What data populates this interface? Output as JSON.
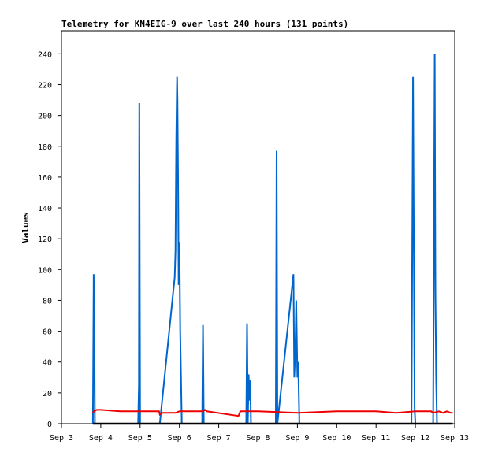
{
  "chart_data": {
    "type": "line",
    "title": "Telemetry for KN4EIG-9 over last 240 hours (131 points)",
    "xlabel": "",
    "ylabel": "Values",
    "ylim": [
      0,
      255
    ],
    "xlim": [
      0,
      10
    ],
    "x_ticks": [
      "Sep 3",
      "Sep 4",
      "Sep 5",
      "Sep 6",
      "Sep 7",
      "Sep 8",
      "Sep 9",
      "Sep 10",
      "Sep 11",
      "Sep 12",
      "Sep 13"
    ],
    "y_ticks": [
      0,
      20,
      40,
      60,
      80,
      100,
      120,
      140,
      160,
      180,
      200,
      220,
      240
    ],
    "x_unit": "days since Sep 3",
    "grid": false,
    "legend": "none",
    "series": [
      {
        "color": "#0066cc",
        "x": [
          0.8,
          0.82,
          0.84,
          0.85,
          0.86,
          0.88,
          1.95,
          1.97,
          1.98,
          2.0,
          2.02,
          2.5,
          2.88,
          2.9,
          2.92,
          2.94,
          2.95,
          2.97,
          2.98,
          3.0,
          3.02,
          3.04,
          3.06,
          3.58,
          3.6,
          3.62,
          4.7,
          4.72,
          4.74,
          4.76,
          4.78,
          4.8,
          4.82,
          5.45,
          5.47,
          5.49,
          5.9,
          5.92,
          5.95,
          5.97,
          6.0,
          6.02,
          6.05,
          8.9,
          8.92,
          8.94,
          8.96,
          8.98,
          9.0,
          9.45,
          9.47,
          9.49,
          9.51,
          9.53,
          9.55
        ],
        "y": [
          0,
          97,
          48,
          0,
          0,
          0,
          0,
          25,
          208,
          0,
          0,
          0,
          95,
          112,
          185,
          225,
          210,
          145,
          90,
          118,
          60,
          30,
          0,
          0,
          64,
          0,
          0,
          65,
          0,
          32,
          15,
          28,
          0,
          0,
          177,
          0,
          97,
          30,
          50,
          80,
          30,
          40,
          0,
          0,
          112,
          225,
          120,
          10,
          0,
          0,
          120,
          240,
          85,
          28,
          0
        ]
      },
      {
        "color": "#ee0000",
        "x": [
          0.8,
          0.82,
          0.9,
          1.0,
          1.5,
          2.0,
          2.48,
          2.5,
          2.55,
          2.9,
          3.0,
          3.5,
          3.6,
          3.65,
          3.7,
          4.5,
          4.55,
          4.6,
          5.0,
          6.0,
          7.0,
          8.0,
          8.5,
          9.0,
          9.4,
          9.45,
          9.6,
          9.7,
          9.8,
          9.9,
          9.95
        ],
        "y": [
          7,
          8,
          9,
          9,
          8,
          8,
          8,
          6,
          7,
          7,
          8,
          8,
          8,
          9,
          8,
          5,
          8,
          8,
          8,
          7,
          8,
          8,
          7,
          8,
          8,
          7,
          8,
          7,
          8,
          7,
          7
        ]
      },
      {
        "color": "#000000",
        "x": [
          0.8,
          9.95
        ],
        "y": [
          0,
          0
        ]
      }
    ]
  }
}
